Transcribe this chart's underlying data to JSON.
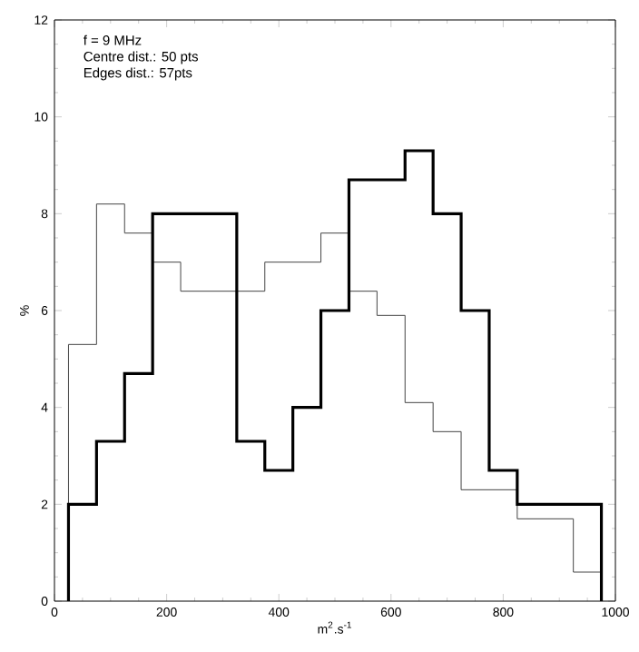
{
  "chart_data": {
    "type": "histogram",
    "xlabel": "m$^{2}$.s$^{-1}$",
    "ylabel": "%",
    "bins": [
      25,
      75,
      125,
      175,
      225,
      275,
      325,
      375,
      425,
      475,
      525,
      575,
      625,
      675,
      725,
      775,
      825,
      875,
      925,
      975
    ],
    "series": [
      {
        "color": "#444444",
        "values": [
          5.3,
          8.2,
          7.6,
          7.0,
          6.4,
          6.4,
          6.4,
          7.0,
          7.0,
          7.6,
          6.4,
          5.9,
          4.1,
          3.5,
          2.3,
          2.3,
          1.7,
          1.7,
          0.6
        ]
      },
      {
        "color": "#000000",
        "values": [
          2,
          3.3,
          4.7,
          8,
          8,
          8,
          3.3,
          2.7,
          4,
          6,
          8.7,
          8.7,
          9.3,
          8,
          6,
          2.7,
          2,
          2,
          2
        ]
      }
    ],
    "xlim": [
      0,
      1000
    ],
    "ylim": [
      0,
      12
    ],
    "xticks": [
      0,
      200,
      400,
      600,
      800,
      1000
    ],
    "yticks": [
      0,
      2,
      4,
      6,
      8,
      10,
      12
    ],
    "annotations": [
      "f = 9 MHz",
      "Centre dist.: 50 pts",
      "Edges dist.:  57pts"
    ]
  }
}
